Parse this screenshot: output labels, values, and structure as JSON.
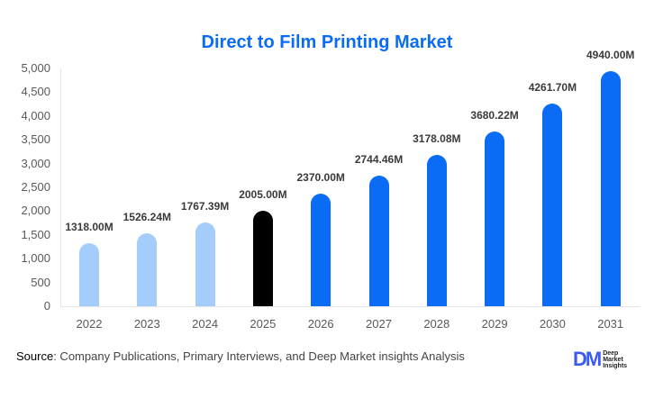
{
  "chart_data": {
    "type": "bar",
    "title": "Direct to Film Printing Market",
    "xlabel": "",
    "ylabel": "",
    "ylim": [
      0,
      5000
    ],
    "yticks": [
      "0",
      "500",
      "1,000",
      "1,500",
      "2,000",
      "2,500",
      "3,000",
      "3,500",
      "4,000",
      "4,500",
      "5,000"
    ],
    "categories": [
      "2022",
      "2023",
      "2024",
      "2025",
      "2026",
      "2027",
      "2028",
      "2029",
      "2030",
      "2031"
    ],
    "values": [
      1318.0,
      1526.24,
      1767.39,
      2005.0,
      2370.0,
      2744.46,
      3178.08,
      3680.22,
      4261.7,
      4940.0
    ],
    "data_labels": [
      "1318.00M",
      "1526.24M",
      "1767.39M",
      "2005.00M",
      "2370.00M",
      "2744.46M",
      "3178.08M",
      "3680.22M",
      "4261.70M",
      "4940.00M"
    ],
    "bar_colors": [
      "#a4cdfb",
      "#a4cdfb",
      "#a4cdfb",
      "#000000",
      "#0a6cf5",
      "#0a6cf5",
      "#0a6cf5",
      "#0a6cf5",
      "#0a6cf5",
      "#0a6cf5"
    ],
    "grid": false,
    "legend": null
  },
  "footer": {
    "source_label": "Source",
    "source_text": ": Company Publications, Primary Interviews, and Deep Market insights Analysis"
  },
  "logo": {
    "mark": "DM",
    "line1": "Deep",
    "line2": "Market",
    "line3": "Insights"
  }
}
